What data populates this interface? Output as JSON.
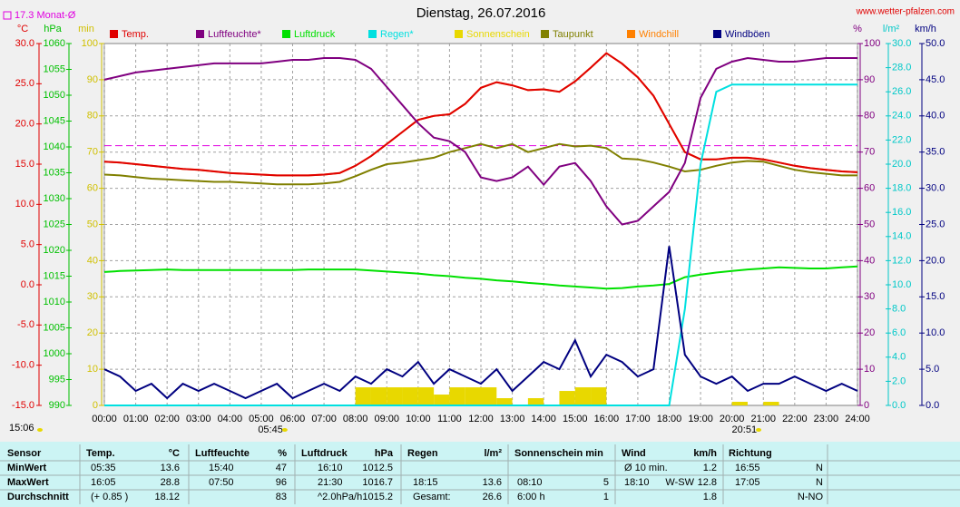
{
  "chart_data": {
    "type": "line",
    "title": "Dienstag, 26.07.2016",
    "source": "www.wetter-pfalzen.com",
    "time_label": "15:06",
    "sun_events": [
      {
        "label": "05:45",
        "x": 5.75
      },
      {
        "label": "20:51",
        "x": 20.85
      }
    ],
    "reference": {
      "label": "17.3 Monat-Ø",
      "value": 17.3,
      "axis": "temp",
      "color": "#e000e0"
    },
    "xlim": [
      0,
      24
    ],
    "xticks": [
      {
        "value": 0,
        "label": "00:00"
      },
      {
        "value": 1,
        "label": "01:00"
      },
      {
        "value": 2,
        "label": "02:00"
      },
      {
        "value": 3,
        "label": "03:00"
      },
      {
        "value": 4,
        "label": "04:00"
      },
      {
        "value": 5,
        "label": "05:00"
      },
      {
        "value": 6,
        "label": "06:00"
      },
      {
        "value": 7,
        "label": "07:00"
      },
      {
        "value": 8,
        "label": "08:00"
      },
      {
        "value": 9,
        "label": "09:00"
      },
      {
        "value": 10,
        "label": "10:00"
      },
      {
        "value": 11,
        "label": "11:00"
      },
      {
        "value": 12,
        "label": "12:00"
      },
      {
        "value": 13,
        "label": "13:00"
      },
      {
        "value": 14,
        "label": "14:00"
      },
      {
        "value": 15,
        "label": "15:00"
      },
      {
        "value": 16,
        "label": "16:00"
      },
      {
        "value": 17,
        "label": "17:00"
      },
      {
        "value": 18,
        "label": "18:00"
      },
      {
        "value": 19,
        "label": "19:00"
      },
      {
        "value": 20,
        "label": "20:00"
      },
      {
        "value": 21,
        "label": "21:00"
      },
      {
        "value": 22,
        "label": "22:00"
      },
      {
        "value": 23,
        "label": "23:00"
      },
      {
        "value": 24,
        "label": "24:00"
      }
    ],
    "grid": true,
    "grid_axis": "min",
    "axes": [
      {
        "id": "temp",
        "label": "°C",
        "color": "#e00000",
        "lim": [
          -15,
          30
        ],
        "ticks": [
          {
            "value": -15,
            "label": "-15.0"
          },
          {
            "value": -10,
            "label": "-10.0"
          },
          {
            "value": -5,
            "label": "-5.0"
          },
          {
            "value": 0,
            "label": "0.0"
          },
          {
            "value": 5,
            "label": "5.0"
          },
          {
            "value": 10,
            "label": "10.0"
          },
          {
            "value": 15,
            "label": "15.0"
          },
          {
            "value": 20,
            "label": "20.0"
          },
          {
            "value": 25,
            "label": "25.0"
          },
          {
            "value": 30,
            "label": "30.0"
          }
        ]
      },
      {
        "id": "hpa",
        "label": "hPa",
        "color": "#00c000",
        "lim": [
          990,
          1060
        ],
        "ticks": [
          990,
          995,
          1000,
          1005,
          1010,
          1015,
          1020,
          1025,
          1030,
          1035,
          1040,
          1045,
          1050,
          1055,
          1060
        ]
      },
      {
        "id": "min",
        "label": "min",
        "color": "#d0c000",
        "lim": [
          0,
          100
        ],
        "ticks": [
          0,
          10,
          20,
          30,
          40,
          50,
          60,
          70,
          80,
          90,
          100
        ]
      },
      {
        "id": "pct",
        "label": "%",
        "color": "#800080",
        "lim": [
          0,
          100
        ],
        "ticks": [
          0,
          10,
          20,
          30,
          40,
          50,
          60,
          70,
          80,
          90,
          100
        ]
      },
      {
        "id": "rain",
        "label": "l/m²",
        "color": "#00c8c8",
        "lim": [
          0,
          30
        ],
        "ticks": [
          {
            "value": 0,
            "label": "0.0"
          },
          {
            "value": 2,
            "label": "2.0"
          },
          {
            "value": 4,
            "label": "4.0"
          },
          {
            "value": 6,
            "label": "6.0"
          },
          {
            "value": 8,
            "label": "8.0"
          },
          {
            "value": 10,
            "label": "10.0"
          },
          {
            "value": 12,
            "label": "12.0"
          },
          {
            "value": 14,
            "label": "14.0"
          },
          {
            "value": 16,
            "label": "16.0"
          },
          {
            "value": 18,
            "label": "18.0"
          },
          {
            "value": 20,
            "label": "20.0"
          },
          {
            "value": 22,
            "label": "22.0"
          },
          {
            "value": 24,
            "label": "24.0"
          },
          {
            "value": 26,
            "label": "26.0"
          },
          {
            "value": 28,
            "label": "28.0"
          },
          {
            "value": 30,
            "label": "30.0"
          }
        ]
      },
      {
        "id": "kmh",
        "label": "km/h",
        "color": "#000080",
        "lim": [
          0,
          50
        ],
        "ticks": [
          {
            "value": 0,
            "label": "0.0"
          },
          {
            "value": 5,
            "label": "5.0"
          },
          {
            "value": 10,
            "label": "10.0"
          },
          {
            "value": 15,
            "label": "15.0"
          },
          {
            "value": 20,
            "label": "20.0"
          },
          {
            "value": 25,
            "label": "25.0"
          },
          {
            "value": 30,
            "label": "30.0"
          },
          {
            "value": 35,
            "label": "35.0"
          },
          {
            "value": 40,
            "label": "40.0"
          },
          {
            "value": 45,
            "label": "45.0"
          },
          {
            "value": 50,
            "label": "50.0"
          }
        ]
      }
    ],
    "x": [
      0,
      0.5,
      1,
      1.5,
      2,
      2.5,
      3,
      3.5,
      4,
      4.5,
      5,
      5.5,
      6,
      6.5,
      7,
      7.5,
      8,
      8.5,
      9,
      9.5,
      10,
      10.5,
      11,
      11.5,
      12,
      12.5,
      13,
      13.5,
      14,
      14.5,
      15,
      15.5,
      16,
      16.5,
      17,
      17.5,
      18,
      18.5,
      19,
      19.5,
      20,
      20.5,
      21,
      21.5,
      22,
      22.5,
      23,
      23.5,
      24
    ],
    "series": [
      {
        "name": "Temp.",
        "color": "#e00000",
        "axis": "temp",
        "values": [
          15.3,
          15.2,
          15.0,
          14.8,
          14.6,
          14.4,
          14.3,
          14.1,
          13.9,
          13.8,
          13.7,
          13.6,
          13.6,
          13.6,
          13.7,
          13.9,
          14.8,
          16.0,
          17.5,
          19.0,
          20.5,
          21.0,
          21.2,
          22.5,
          24.5,
          25.2,
          24.8,
          24.2,
          24.3,
          24.0,
          25.3,
          27.0,
          28.8,
          27.5,
          25.8,
          23.5,
          20.0,
          16.5,
          15.6,
          15.6,
          15.8,
          15.8,
          15.6,
          15.2,
          14.8,
          14.5,
          14.3,
          14.1,
          14.0
        ]
      },
      {
        "name": "Luftfeuchte*",
        "color": "#800080",
        "axis": "pct",
        "values": [
          90,
          91,
          92,
          92.5,
          93,
          93.5,
          94,
          94.5,
          94.5,
          94.5,
          94.5,
          95,
          95.5,
          95.5,
          96,
          96,
          95.5,
          93,
          88,
          83,
          78,
          74,
          73,
          70,
          63,
          62,
          63,
          66,
          61,
          66,
          67,
          62,
          55,
          50,
          51,
          55,
          59,
          67,
          85,
          93,
          95,
          96,
          95.5,
          95,
          95,
          95.5,
          96,
          96,
          96
        ]
      },
      {
        "name": "Luftdruck",
        "color": "#00e000",
        "axis": "hpa",
        "values": [
          1015.8,
          1016.0,
          1016.1,
          1016.2,
          1016.3,
          1016.2,
          1016.2,
          1016.2,
          1016.2,
          1016.2,
          1016.2,
          1016.2,
          1016.2,
          1016.3,
          1016.3,
          1016.3,
          1016.3,
          1016.1,
          1015.9,
          1015.7,
          1015.5,
          1015.2,
          1015.0,
          1014.7,
          1014.5,
          1014.2,
          1014.0,
          1013.7,
          1013.5,
          1013.2,
          1013.0,
          1012.8,
          1012.6,
          1012.7,
          1013.0,
          1013.2,
          1013.5,
          1014.8,
          1015.3,
          1015.7,
          1016.0,
          1016.3,
          1016.5,
          1016.7,
          1016.6,
          1016.5,
          1016.5,
          1016.7,
          1016.9
        ]
      },
      {
        "name": "Regen*",
        "color": "#00e0e0",
        "axis": "rain",
        "values": [
          0,
          0,
          0,
          0,
          0,
          0,
          0,
          0,
          0,
          0,
          0,
          0,
          0,
          0,
          0,
          0,
          0,
          0,
          0,
          0,
          0,
          0,
          0,
          0,
          0,
          0,
          0,
          0,
          0,
          0,
          0,
          0,
          0,
          0,
          0,
          0,
          0,
          8,
          20,
          26,
          26.6,
          26.6,
          26.6,
          26.6,
          26.6,
          26.6,
          26.6,
          26.6,
          26.6
        ]
      },
      {
        "name": "Sonnenschein",
        "color": "#e8d800",
        "axis": "min",
        "style": "bar",
        "values": [
          0,
          0,
          0,
          0,
          0,
          0,
          0,
          0,
          0,
          0,
          0,
          0,
          0,
          0,
          0,
          0,
          5,
          5,
          5,
          5,
          5,
          3,
          5,
          5,
          5,
          2,
          0,
          2,
          0,
          4,
          5,
          5,
          0,
          0,
          0,
          0,
          0,
          0,
          0,
          0,
          1,
          0,
          1,
          0,
          0,
          0,
          0,
          0,
          0
        ]
      },
      {
        "name": "Taupunkt",
        "color": "#808000",
        "axis": "temp",
        "values": [
          13.7,
          13.6,
          13.4,
          13.2,
          13.1,
          13.0,
          12.9,
          12.8,
          12.8,
          12.7,
          12.6,
          12.5,
          12.5,
          12.5,
          12.6,
          12.8,
          13.5,
          14.3,
          15.0,
          15.2,
          15.5,
          15.8,
          16.5,
          17.0,
          17.5,
          17.0,
          17.5,
          16.5,
          17.0,
          17.5,
          17.2,
          17.3,
          17.0,
          15.7,
          15.6,
          15.2,
          14.7,
          14.1,
          14.3,
          14.8,
          15.2,
          15.4,
          15.3,
          14.8,
          14.3,
          14.0,
          13.8,
          13.6,
          13.6
        ]
      },
      {
        "name": "Windchill",
        "color": "#ff8000",
        "axis": "temp",
        "values": [
          15.3,
          15.2,
          15.0,
          14.8,
          14.6,
          14.4,
          14.3,
          14.1,
          13.9,
          13.8,
          13.7,
          13.6,
          13.6,
          13.6,
          13.7,
          13.9,
          14.8,
          16.0,
          17.5,
          19.0,
          20.5,
          21.0,
          21.2,
          22.5,
          24.5,
          25.2,
          24.8,
          24.2,
          24.3,
          24.0,
          25.3,
          27.0,
          28.8,
          27.5,
          25.8,
          23.5,
          20.0,
          16.5,
          15.6,
          15.6,
          15.8,
          15.8,
          15.6,
          15.2,
          14.8,
          14.5,
          14.3,
          14.1,
          14.0
        ]
      },
      {
        "name": "Windböen",
        "color": "#000080",
        "axis": "kmh",
        "values": [
          5,
          4,
          2,
          3,
          1,
          3,
          2,
          3,
          2,
          1,
          2,
          3,
          1,
          2,
          3,
          2,
          4,
          3,
          5,
          4,
          6,
          3,
          5,
          4,
          3,
          5,
          2,
          4,
          6,
          5,
          9,
          4,
          7,
          6,
          4,
          5,
          22,
          7,
          4,
          3,
          4,
          2,
          3,
          3,
          4,
          3,
          2,
          3,
          2
        ]
      }
    ]
  },
  "table": {
    "header": [
      "Sensor",
      "Temp.",
      "°C",
      "Luftfeuchte",
      "%",
      "Luftdruck",
      "hPa",
      "Regen",
      "l/m²",
      "Sonnenschein min",
      "Wind",
      "km/h",
      "Richtung"
    ],
    "rows": [
      [
        "MinWert",
        "05:35",
        "13.6",
        "15:40",
        "47",
        "16:10",
        "1012.5",
        null,
        null,
        null,
        null,
        "Ø 10 min.",
        null,
        "1.2",
        "16:55",
        "N"
      ],
      [
        "MaxWert",
        "16:05",
        "28.8",
        "07:50",
        "96",
        "21:30",
        "1016.7",
        "18:15",
        "13.6",
        "08:10",
        "5",
        "18:10",
        "W-SW",
        "12.8",
        "17:05",
        "N"
      ],
      [
        "Durchschnitt",
        "(+ 0.85 )",
        "18.12",
        null,
        "83",
        "^2.0hPa/h",
        "1015.2",
        "Gesamt:",
        "26.6",
        "6:00 h",
        "1",
        null,
        null,
        "1.8",
        null,
        "N-NO"
      ]
    ]
  }
}
